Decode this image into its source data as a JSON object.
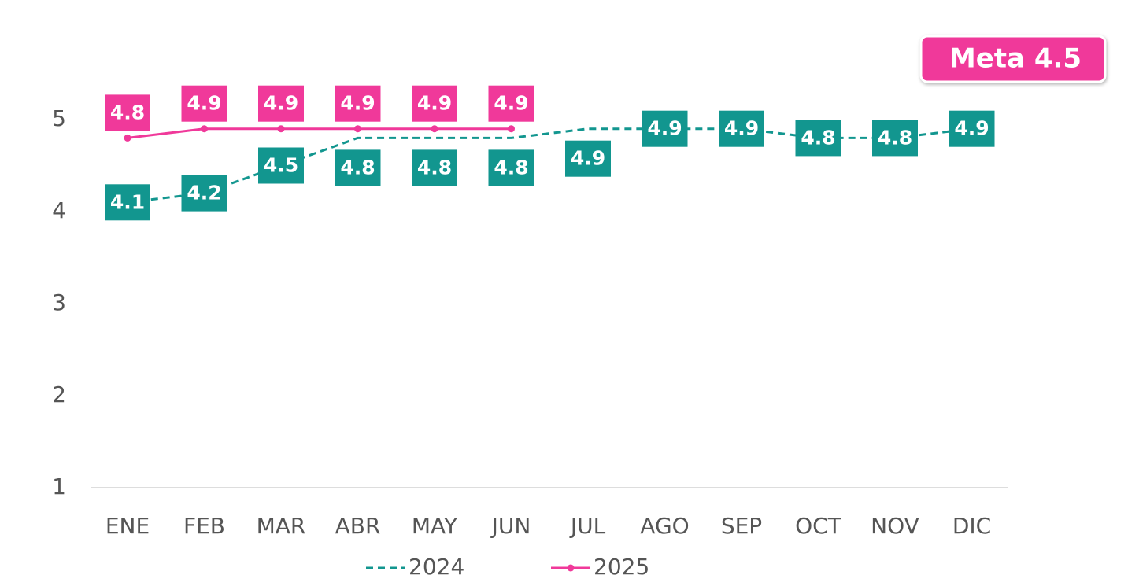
{
  "chart_data": {
    "type": "line",
    "annotation": "Meta 4.5",
    "categories": [
      "ENE",
      "FEB",
      "MAR",
      "ABR",
      "MAY",
      "JUN",
      "JUL",
      "AGO",
      "SEP",
      "OCT",
      "NOV",
      "DIC"
    ],
    "series": [
      {
        "name": "2024",
        "color": "#12968f",
        "dashed": true,
        "values": [
          4.1,
          4.2,
          4.5,
          4.8,
          4.8,
          4.8,
          4.9,
          4.9,
          4.9,
          4.8,
          4.8,
          4.9
        ]
      },
      {
        "name": "2025",
        "color": "#f0399a",
        "dashed": false,
        "values": [
          4.8,
          4.9,
          4.9,
          4.9,
          4.9,
          4.9,
          null,
          null,
          null,
          null,
          null,
          null
        ]
      }
    ],
    "ylim": [
      1,
      5
    ],
    "yticks": [
      1,
      2,
      3,
      4,
      5
    ],
    "grid": false
  }
}
